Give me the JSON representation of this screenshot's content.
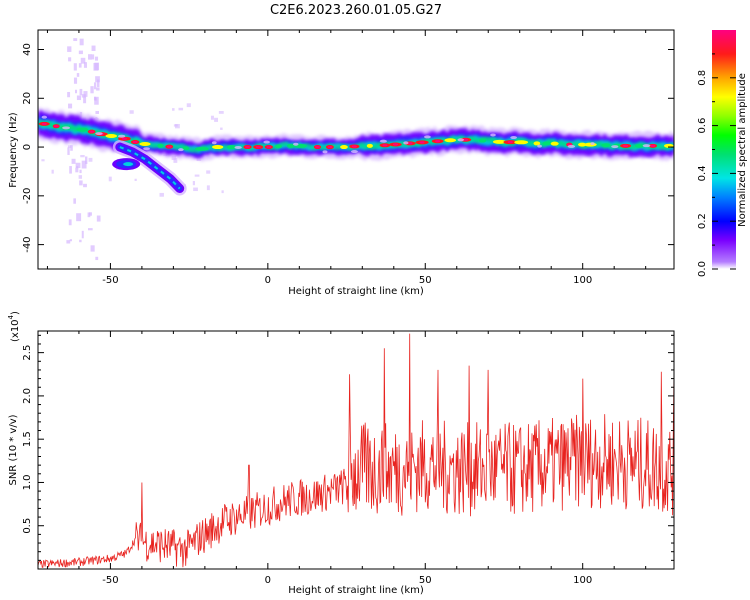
{
  "title": "C2E6.2023.260.01.05.G27",
  "chart_data": [
    {
      "type": "heatmap",
      "xlabel": "Height of straight line (km)",
      "ylabel": "Frequency (Hz)",
      "xlim": [
        -73,
        129
      ],
      "ylim": [
        -50,
        48
      ],
      "xticks": [
        -50,
        0,
        50,
        100
      ],
      "xtick_labels": [
        "-50",
        "0",
        "50",
        "100"
      ],
      "yticks": [
        -40,
        -20,
        0,
        20,
        40
      ],
      "ytick_labels": [
        "-40",
        "-20",
        "0",
        "20",
        "40"
      ],
      "colorbar": {
        "label": "Normalized spectral amplitude",
        "range": [
          0,
          1
        ],
        "ticks": [
          0.0,
          0.2,
          0.4,
          0.6,
          0.8
        ],
        "tick_labels": [
          "0.0",
          "0.2",
          "0.4",
          "0.6",
          "0.8"
        ]
      },
      "ridge": {
        "x": [
          -73,
          -65,
          -58,
          -52,
          -47,
          -42,
          -38,
          -34,
          -30,
          -26,
          -22,
          -18,
          -14,
          -10,
          -5,
          0,
          5,
          10,
          15,
          20,
          25,
          30,
          35,
          40,
          45,
          50,
          55,
          60,
          65,
          70,
          75,
          80,
          85,
          90,
          95,
          100,
          105,
          110,
          115,
          120,
          125,
          129
        ],
        "y": [
          10,
          8,
          7,
          5,
          4,
          2,
          1,
          0.5,
          0,
          -0.5,
          -1,
          0,
          0,
          0,
          0,
          0,
          0.5,
          0.5,
          0,
          0,
          0,
          0.5,
          0.5,
          1,
          1.5,
          2,
          2.5,
          3,
          3,
          2.5,
          2,
          2,
          1.5,
          1.5,
          1,
          1,
          1,
          0.5,
          0.5,
          0.5,
          0.5,
          0.5
        ]
      },
      "branch": {
        "x": [
          -47,
          -43,
          -39,
          -35,
          -31,
          -28
        ],
        "y": [
          0,
          -2,
          -5,
          -9,
          -13,
          -17
        ]
      },
      "blob": {
        "x": -45,
        "y": -7
      },
      "noise_column_x": -59,
      "grid": false
    },
    {
      "type": "line",
      "xlabel": "Height of straight line (km)",
      "ylabel": "SNR (10 * v/v)",
      "y_multiplier": "(x10",
      "y_multiplier_exp": "4",
      "y_multiplier_close": ")",
      "xlim": [
        -73,
        129
      ],
      "ylim": [
        0,
        2.75
      ],
      "xticks": [
        -50,
        0,
        50,
        100
      ],
      "xtick_labels": [
        "-50",
        "0",
        "50",
        "100"
      ],
      "yticks": [
        0.5,
        1.0,
        1.5,
        2.0,
        2.5
      ],
      "ytick_labels": [
        "0.5",
        "1.0",
        "1.5",
        "2.0",
        "2.5"
      ],
      "color": "#e8231f",
      "trend": {
        "x": [
          -73,
          -60,
          -50,
          -45,
          -42,
          -38,
          -34,
          -30,
          -26,
          -22,
          -18,
          -14,
          -10,
          -5,
          0,
          5,
          10,
          15,
          20,
          24,
          26,
          30,
          40,
          50,
          60,
          70,
          80,
          90,
          100,
          110,
          120,
          129
        ],
        "y": [
          0.05,
          0.08,
          0.12,
          0.18,
          0.35,
          0.3,
          0.28,
          0.25,
          0.22,
          0.35,
          0.45,
          0.55,
          0.6,
          0.65,
          0.72,
          0.78,
          0.82,
          0.85,
          0.9,
          0.95,
          1.1,
          1.15,
          1.15,
          1.2,
          1.15,
          1.15,
          1.15,
          1.2,
          1.25,
          1.25,
          1.2,
          1.15
        ]
      },
      "peaks": [
        {
          "x": -40,
          "y": 1.0
        },
        {
          "x": -6,
          "y": 1.2
        },
        {
          "x": 26,
          "y": 2.25
        },
        {
          "x": 37,
          "y": 2.55
        },
        {
          "x": 45,
          "y": 2.72
        },
        {
          "x": 54,
          "y": 2.3
        },
        {
          "x": 64,
          "y": 2.35
        },
        {
          "x": 70,
          "y": 2.3
        },
        {
          "x": 100,
          "y": 2.2
        },
        {
          "x": 125,
          "y": 2.28
        },
        {
          "x": 129,
          "y": 2.3
        }
      ],
      "grid": false
    }
  ]
}
